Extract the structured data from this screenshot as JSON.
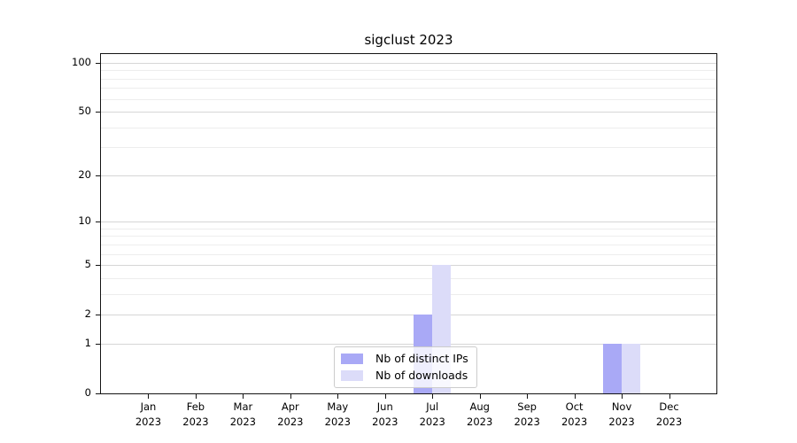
{
  "chart_data": {
    "type": "bar",
    "title": "sigclust 2023",
    "categories": [
      "Jan",
      "Feb",
      "Mar",
      "Apr",
      "May",
      "Jun",
      "Jul",
      "Aug",
      "Sep",
      "Oct",
      "Nov",
      "Dec"
    ],
    "year": "2023",
    "series": [
      {
        "name": "Nb of distinct IPs",
        "color": "#a9a9f6",
        "values": [
          0,
          0,
          0,
          0,
          0,
          0,
          2,
          0,
          0,
          0,
          1,
          0
        ]
      },
      {
        "name": "Nb of downloads",
        "color": "#dcdcf9",
        "values": [
          0,
          0,
          0,
          0,
          0,
          0,
          5,
          0,
          0,
          0,
          1,
          0
        ]
      }
    ],
    "yscale": "log1p",
    "ylim": [
      0,
      113
    ],
    "y_major_ticks": [
      0,
      1,
      2,
      5,
      10,
      20,
      50,
      100
    ],
    "y_minor_ticks": [
      3,
      4,
      6,
      7,
      8,
      9,
      30,
      40,
      60,
      70,
      80,
      90
    ],
    "grid": "horizontal",
    "legend_position": "lower center",
    "axis_color": "#141414",
    "grid_major_color": "#d6d6d6",
    "grid_minor_color": "#ededed"
  }
}
